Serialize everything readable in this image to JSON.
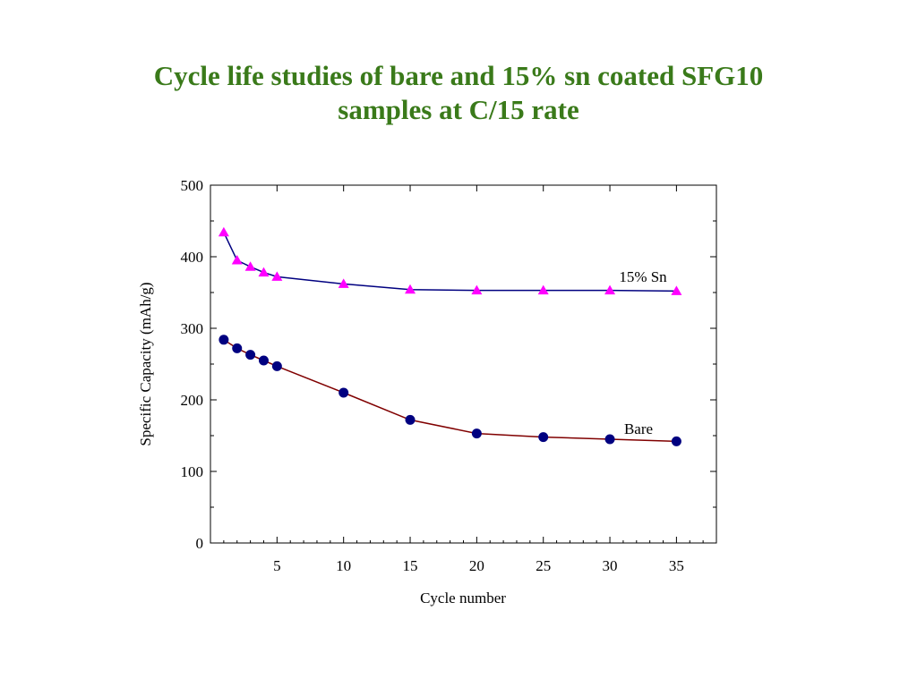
{
  "slide": {
    "title_line1": "Cycle life studies of bare and 15% sn coated SFG10",
    "title_line2": "samples at C/15 rate",
    "title_color": "#3a7a1a"
  },
  "chart_data": {
    "type": "line",
    "xlabel": "Cycle number",
    "ylabel": "Specific Capacity (mAh/g)",
    "xlim": [
      0,
      38
    ],
    "ylim": [
      0,
      500
    ],
    "xticks": [
      5,
      10,
      15,
      20,
      25,
      30,
      35
    ],
    "yticks": [
      0,
      100,
      200,
      300,
      400,
      500
    ],
    "grid": false,
    "legend": "none",
    "series": [
      {
        "name": "15% Sn",
        "color": "#000080",
        "marker": "triangle",
        "marker_color": "#ff00ff",
        "x": [
          1,
          2,
          3,
          4,
          5,
          10,
          15,
          20,
          25,
          30,
          35
        ],
        "y": [
          434,
          395,
          386,
          378,
          372,
          362,
          354,
          353,
          353,
          353,
          352
        ]
      },
      {
        "name": "Bare",
        "color": "#800000",
        "marker": "circle",
        "marker_color": "#000080",
        "x": [
          1,
          2,
          3,
          4,
          5,
          10,
          15,
          20,
          25,
          30,
          35
        ],
        "y": [
          284,
          272,
          263,
          255,
          247,
          210,
          172,
          153,
          148,
          145,
          142
        ]
      }
    ]
  }
}
